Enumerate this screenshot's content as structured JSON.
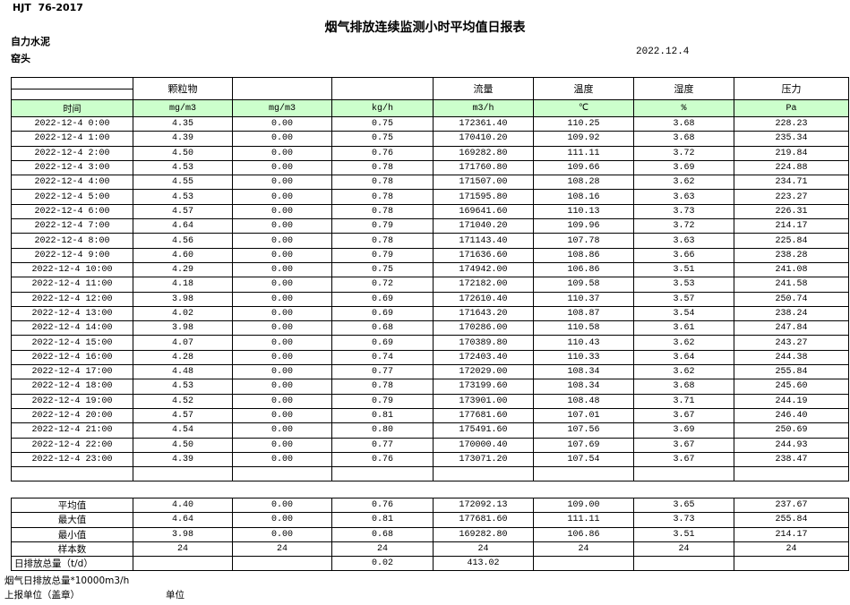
{
  "header": {
    "doc_code": "HJT  76-2017",
    "title": "烟气排放连续监测小时平均值日报表",
    "company": "自力水泥",
    "station": "窑头",
    "date": "2022.12.4"
  },
  "colors": {
    "unit_row_bg": "#ccffcc",
    "border": "#000000"
  },
  "table": {
    "group_headers": [
      "",
      "颗粒物",
      "",
      "",
      "流量",
      "温度",
      "湿度",
      "压力"
    ],
    "unit_row": [
      "时间",
      "mg/m3",
      "mg/m3",
      "kg/h",
      "m3/h",
      "℃",
      "%",
      "Pa"
    ],
    "rows": [
      [
        "2022-12-4 0:00",
        "4.35",
        "0.00",
        "0.75",
        "172361.40",
        "110.25",
        "3.68",
        "228.23"
      ],
      [
        "2022-12-4 1:00",
        "4.39",
        "0.00",
        "0.75",
        "170410.20",
        "109.92",
        "3.68",
        "235.34"
      ],
      [
        "2022-12-4 2:00",
        "4.50",
        "0.00",
        "0.76",
        "169282.80",
        "111.11",
        "3.72",
        "219.84"
      ],
      [
        "2022-12-4 3:00",
        "4.53",
        "0.00",
        "0.78",
        "171760.80",
        "109.66",
        "3.69",
        "224.88"
      ],
      [
        "2022-12-4 4:00",
        "4.55",
        "0.00",
        "0.78",
        "171507.00",
        "108.28",
        "3.62",
        "234.71"
      ],
      [
        "2022-12-4 5:00",
        "4.53",
        "0.00",
        "0.78",
        "171595.80",
        "108.16",
        "3.63",
        "223.27"
      ],
      [
        "2022-12-4 6:00",
        "4.57",
        "0.00",
        "0.78",
        "169641.60",
        "110.13",
        "3.73",
        "226.31"
      ],
      [
        "2022-12-4 7:00",
        "4.64",
        "0.00",
        "0.79",
        "171040.20",
        "109.96",
        "3.72",
        "214.17"
      ],
      [
        "2022-12-4 8:00",
        "4.56",
        "0.00",
        "0.78",
        "171143.40",
        "107.78",
        "3.63",
        "225.84"
      ],
      [
        "2022-12-4 9:00",
        "4.60",
        "0.00",
        "0.79",
        "171636.60",
        "108.86",
        "3.66",
        "238.28"
      ],
      [
        "2022-12-4 10:00",
        "4.29",
        "0.00",
        "0.75",
        "174942.00",
        "106.86",
        "3.51",
        "241.08"
      ],
      [
        "2022-12-4 11:00",
        "4.18",
        "0.00",
        "0.72",
        "172182.00",
        "109.58",
        "3.53",
        "241.58"
      ],
      [
        "2022-12-4 12:00",
        "3.98",
        "0.00",
        "0.69",
        "172610.40",
        "110.37",
        "3.57",
        "250.74"
      ],
      [
        "2022-12-4 13:00",
        "4.02",
        "0.00",
        "0.69",
        "171643.20",
        "108.87",
        "3.54",
        "238.24"
      ],
      [
        "2022-12-4 14:00",
        "3.98",
        "0.00",
        "0.68",
        "170286.00",
        "110.58",
        "3.61",
        "247.84"
      ],
      [
        "2022-12-4 15:00",
        "4.07",
        "0.00",
        "0.69",
        "170389.80",
        "110.43",
        "3.62",
        "243.27"
      ],
      [
        "2022-12-4 16:00",
        "4.28",
        "0.00",
        "0.74",
        "172403.40",
        "110.33",
        "3.64",
        "244.38"
      ],
      [
        "2022-12-4 17:00",
        "4.48",
        "0.00",
        "0.77",
        "172029.00",
        "108.34",
        "3.62",
        "255.84"
      ],
      [
        "2022-12-4 18:00",
        "4.53",
        "0.00",
        "0.78",
        "173199.60",
        "108.34",
        "3.68",
        "245.60"
      ],
      [
        "2022-12-4 19:00",
        "4.52",
        "0.00",
        "0.79",
        "173901.00",
        "108.48",
        "3.71",
        "244.19"
      ],
      [
        "2022-12-4 20:00",
        "4.57",
        "0.00",
        "0.81",
        "177681.60",
        "107.01",
        "3.67",
        "246.40"
      ],
      [
        "2022-12-4 21:00",
        "4.54",
        "0.00",
        "0.80",
        "175491.60",
        "107.56",
        "3.69",
        "250.69"
      ],
      [
        "2022-12-4 22:00",
        "4.50",
        "0.00",
        "0.77",
        "170000.40",
        "107.69",
        "3.67",
        "244.93"
      ],
      [
        "2022-12-4 23:00",
        "4.39",
        "0.00",
        "0.76",
        "173071.20",
        "107.54",
        "3.67",
        "238.47"
      ],
      [
        "",
        "",
        "",
        "",
        "",
        "",
        "",
        ""
      ]
    ],
    "summary_rows": [
      [
        "平均值",
        "4.40",
        "0.00",
        "0.76",
        "172092.13",
        "109.00",
        "3.65",
        "237.67"
      ],
      [
        "最大值",
        "4.64",
        "0.00",
        "0.81",
        "177681.60",
        "111.11",
        "3.73",
        "255.84"
      ],
      [
        "最小值",
        "3.98",
        "0.00",
        "0.68",
        "169282.80",
        "106.86",
        "3.51",
        "214.17"
      ],
      [
        "样本数",
        "24",
        "24",
        "24",
        "24",
        "24",
        "24",
        "24"
      ],
      [
        "日排放总量（t/d）",
        "",
        "",
        "0.02",
        "413.02",
        "",
        "",
        ""
      ]
    ]
  },
  "footer": {
    "note": "烟气日排放总量*10000m3/h",
    "report_org": "上报单位（盖章）",
    "unit": "单位"
  }
}
